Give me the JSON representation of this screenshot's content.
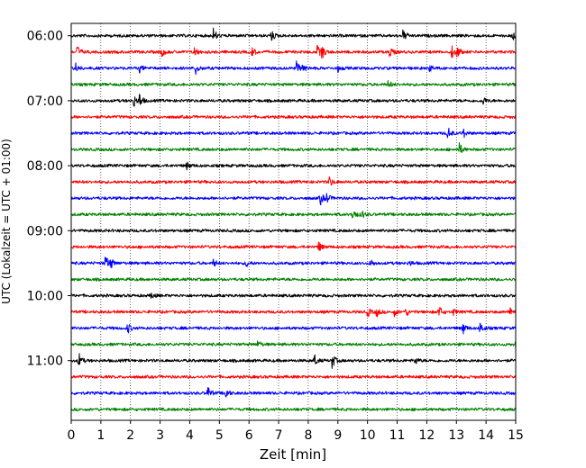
{
  "chart_data": {
    "type": "line",
    "xlabel": "Zeit  [min]",
    "ylabel": "UTC (Lokalzeit = UTC + 01:00)",
    "xlim": [
      0,
      15
    ],
    "x_ticks": [
      0,
      1,
      2,
      3,
      4,
      5,
      6,
      7,
      8,
      9,
      10,
      11,
      12,
      13,
      14,
      15
    ],
    "x_tick_labels": [
      "0",
      "1",
      "2",
      "3",
      "4",
      "5",
      "6",
      "7",
      "8",
      "9",
      "10",
      "11",
      "12",
      "13",
      "14",
      "15"
    ],
    "y_tick_labels": [
      {
        "row": 0,
        "label": "06:00"
      },
      {
        "row": 4,
        "label": "07:00"
      },
      {
        "row": 8,
        "label": "08:00"
      },
      {
        "row": 12,
        "label": "09:00"
      },
      {
        "row": 16,
        "label": "10:00"
      },
      {
        "row": 20,
        "label": "11:00"
      }
    ],
    "grid": "vertical dotted",
    "color_cycle": [
      "#000000",
      "#ff0000",
      "#0000ff",
      "#008000"
    ],
    "rows": [
      {
        "start": "06:00",
        "events": [
          [
            4.8,
            1.0
          ],
          [
            6.75,
            0.7
          ],
          [
            11.2,
            0.8
          ],
          [
            14.85,
            0.9
          ]
        ]
      },
      {
        "start": "06:15",
        "events": [
          [
            0.2,
            0.8
          ],
          [
            3.05,
            0.6
          ],
          [
            4.15,
            0.7
          ],
          [
            6.1,
            0.6
          ],
          [
            8.3,
            0.8
          ],
          [
            8.45,
            0.9
          ],
          [
            10.75,
            0.8
          ],
          [
            12.85,
            0.9
          ],
          [
            13.0,
            0.8
          ]
        ]
      },
      {
        "start": "06:30",
        "events": [
          [
            0.15,
            0.6
          ],
          [
            2.3,
            0.5
          ],
          [
            4.2,
            0.7
          ],
          [
            7.6,
            0.8
          ],
          [
            7.8,
            0.6
          ],
          [
            9.0,
            0.4
          ],
          [
            12.1,
            0.4
          ]
        ]
      },
      {
        "start": "06:45",
        "events": [
          [
            10.7,
            0.5
          ]
        ]
      },
      {
        "start": "07:00",
        "events": [
          [
            2.1,
            0.8
          ],
          [
            2.3,
            0.9
          ],
          [
            13.9,
            0.5
          ]
        ]
      },
      {
        "start": "07:15",
        "events": []
      },
      {
        "start": "07:30",
        "events": [
          [
            12.7,
            1.0
          ],
          [
            13.2,
            0.8
          ]
        ]
      },
      {
        "start": "07:45",
        "events": [
          [
            13.1,
            0.8
          ]
        ]
      },
      {
        "start": "08:00",
        "events": [
          [
            3.9,
            0.5
          ]
        ]
      },
      {
        "start": "08:15",
        "events": [
          [
            8.7,
            0.7
          ]
        ]
      },
      {
        "start": "08:30",
        "events": [
          [
            8.4,
            0.9
          ],
          [
            8.6,
            0.8
          ]
        ]
      },
      {
        "start": "08:45",
        "events": [
          [
            9.5,
            0.9
          ],
          [
            9.8,
            0.5
          ]
        ]
      },
      {
        "start": "09:00",
        "events": []
      },
      {
        "start": "09:15",
        "events": [
          [
            8.35,
            0.7
          ]
        ]
      },
      {
        "start": "09:30",
        "events": [
          [
            1.15,
            1.0
          ],
          [
            1.3,
            0.8
          ],
          [
            4.8,
            0.5
          ],
          [
            5.9,
            0.5
          ],
          [
            10.1,
            0.5
          ],
          [
            11.4,
            0.4
          ]
        ]
      },
      {
        "start": "09:45",
        "events": []
      },
      {
        "start": "10:00",
        "events": [
          [
            2.7,
            0.4
          ]
        ]
      },
      {
        "start": "10:15",
        "events": [
          [
            10.0,
            0.6
          ],
          [
            10.3,
            0.6
          ],
          [
            10.9,
            0.5
          ],
          [
            11.3,
            0.5
          ],
          [
            12.4,
            0.9
          ],
          [
            12.9,
            0.4
          ],
          [
            14.8,
            0.8
          ]
        ]
      },
      {
        "start": "10:30",
        "events": [
          [
            1.9,
            0.7
          ],
          [
            13.2,
            0.9
          ],
          [
            13.8,
            0.8
          ]
        ]
      },
      {
        "start": "10:45",
        "events": [
          [
            6.3,
            0.5
          ],
          [
            15.0,
            0.6
          ]
        ]
      },
      {
        "start": "11:00",
        "events": [
          [
            0.25,
            1.0
          ],
          [
            8.2,
            0.8
          ],
          [
            8.8,
            1.0
          ],
          [
            11.6,
            0.5
          ]
        ]
      },
      {
        "start": "11:15",
        "events": []
      },
      {
        "start": "11:30",
        "events": [
          [
            4.6,
            0.9
          ],
          [
            5.2,
            0.9
          ]
        ]
      },
      {
        "start": "11:45",
        "events": []
      }
    ]
  }
}
